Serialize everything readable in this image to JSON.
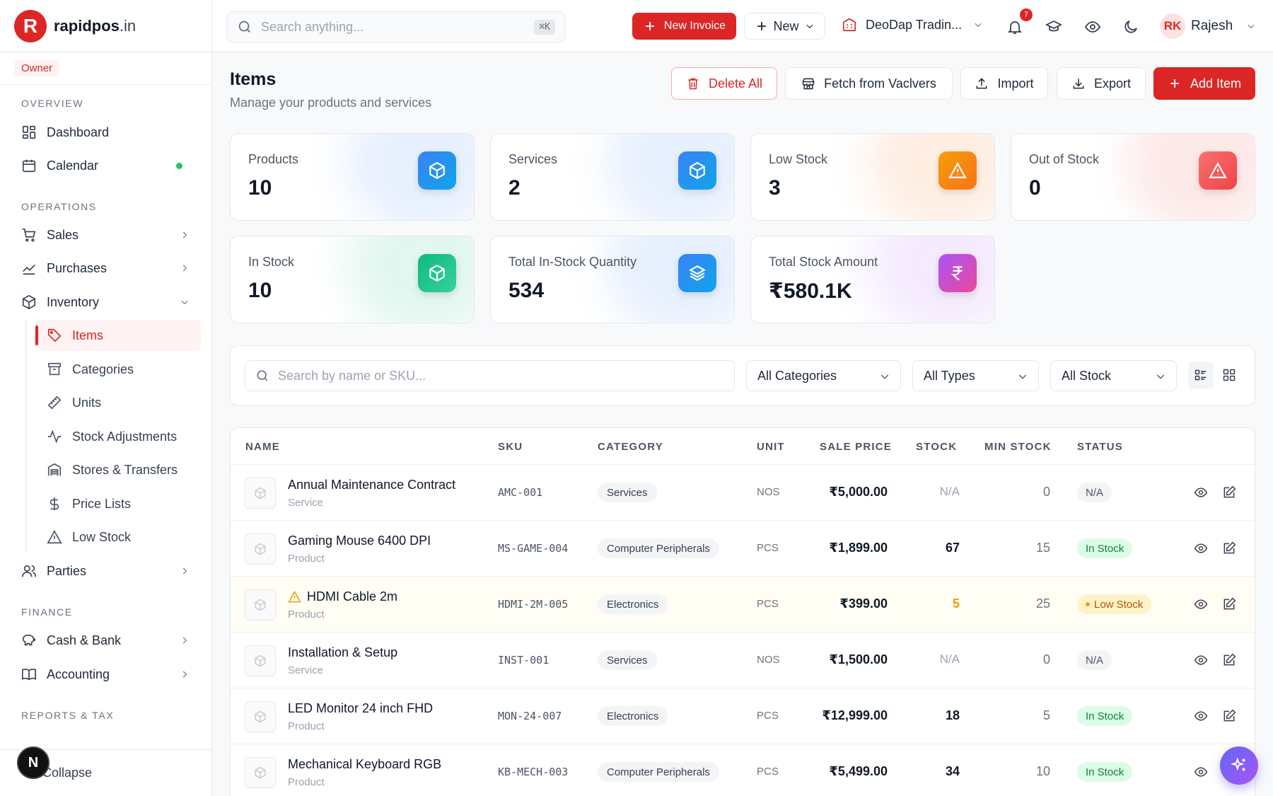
{
  "brand": {
    "mark": "R",
    "name": "rapidpos",
    "tld": ".in"
  },
  "role": "Owner",
  "sidebar": {
    "sections": {
      "overview": "OVERVIEW",
      "operations": "OPERATIONS",
      "finance": "FINANCE",
      "reports": "REPORTS & TAX"
    },
    "items": {
      "dashboard": "Dashboard",
      "calendar": "Calendar",
      "sales": "Sales",
      "purchases": "Purchases",
      "inventory": "Inventory",
      "parties": "Parties",
      "cash_bank": "Cash & Bank",
      "accounting": "Accounting"
    },
    "inventory_sub": {
      "items": "Items",
      "categories": "Categories",
      "units": "Units",
      "stock_adjustments": "Stock Adjustments",
      "stores_transfers": "Stores & Transfers",
      "price_lists": "Price Lists",
      "low_stock": "Low Stock"
    },
    "collapse": "Collapse",
    "user_initial": "N"
  },
  "topbar": {
    "search_placeholder": "Search anything...",
    "shortcut": "⌘K",
    "new_invoice": "New Invoice",
    "new": "New",
    "company": "DeoDap Tradin...",
    "notifications": "7",
    "user_initials": "RK",
    "user_name": "Rajesh"
  },
  "page": {
    "title": "Items",
    "subtitle": "Manage your products and services",
    "actions": {
      "delete_all": "Delete All",
      "fetch": "Fetch from Vaclvers",
      "import": "Import",
      "export": "Export",
      "add_item": "Add Item"
    }
  },
  "stats": {
    "products": {
      "label": "Products",
      "value": "10"
    },
    "services": {
      "label": "Services",
      "value": "2"
    },
    "low_stock": {
      "label": "Low Stock",
      "value": "3"
    },
    "out_of_stock": {
      "label": "Out of Stock",
      "value": "0"
    },
    "in_stock": {
      "label": "In Stock",
      "value": "10"
    },
    "total_qty": {
      "label": "Total In-Stock Quantity",
      "value": "534"
    },
    "total_amount": {
      "label": "Total Stock Amount",
      "value": "₹580.1K"
    }
  },
  "filters": {
    "search_placeholder": "Search by name or SKU...",
    "category": "All Categories",
    "type": "All Types",
    "stock": "All Stock"
  },
  "table": {
    "headers": {
      "name": "NAME",
      "sku": "SKU",
      "category": "CATEGORY",
      "unit": "UNIT",
      "sale_price": "SALE PRICE",
      "stock": "STOCK",
      "min_stock": "MIN STOCK",
      "status": "STATUS"
    },
    "rows": [
      {
        "name": "Annual Maintenance Contract",
        "type": "Service",
        "sku": "AMC-001",
        "category": "Services",
        "unit": "NOS",
        "price": "₹5,000.00",
        "stock": "N/A",
        "min": "0",
        "status": "N/A"
      },
      {
        "name": "Gaming Mouse 6400 DPI",
        "type": "Product",
        "sku": "MS-GAME-004",
        "category": "Computer Peripherals",
        "unit": "PCS",
        "price": "₹1,899.00",
        "stock": "67",
        "min": "15",
        "status": "In Stock"
      },
      {
        "name": "HDMI Cable 2m",
        "type": "Product",
        "sku": "HDMI-2M-005",
        "category": "Electronics",
        "unit": "PCS",
        "price": "₹399.00",
        "stock": "5",
        "min": "25",
        "status": "Low Stock"
      },
      {
        "name": "Installation & Setup",
        "type": "Service",
        "sku": "INST-001",
        "category": "Services",
        "unit": "NOS",
        "price": "₹1,500.00",
        "stock": "N/A",
        "min": "0",
        "status": "N/A"
      },
      {
        "name": "LED Monitor 24 inch FHD",
        "type": "Product",
        "sku": "MON-24-007",
        "category": "Electronics",
        "unit": "PCS",
        "price": "₹12,999.00",
        "stock": "18",
        "min": "5",
        "status": "In Stock"
      },
      {
        "name": "Mechanical Keyboard RGB",
        "type": "Product",
        "sku": "KB-MECH-003",
        "category": "Computer Peripherals",
        "unit": "PCS",
        "price": "₹5,499.00",
        "stock": "34",
        "min": "10",
        "status": "In Stock"
      }
    ]
  },
  "colors": {
    "accent": "#dc2626",
    "in_stock": "#15803d",
    "low_stock": "#f59e0b"
  }
}
